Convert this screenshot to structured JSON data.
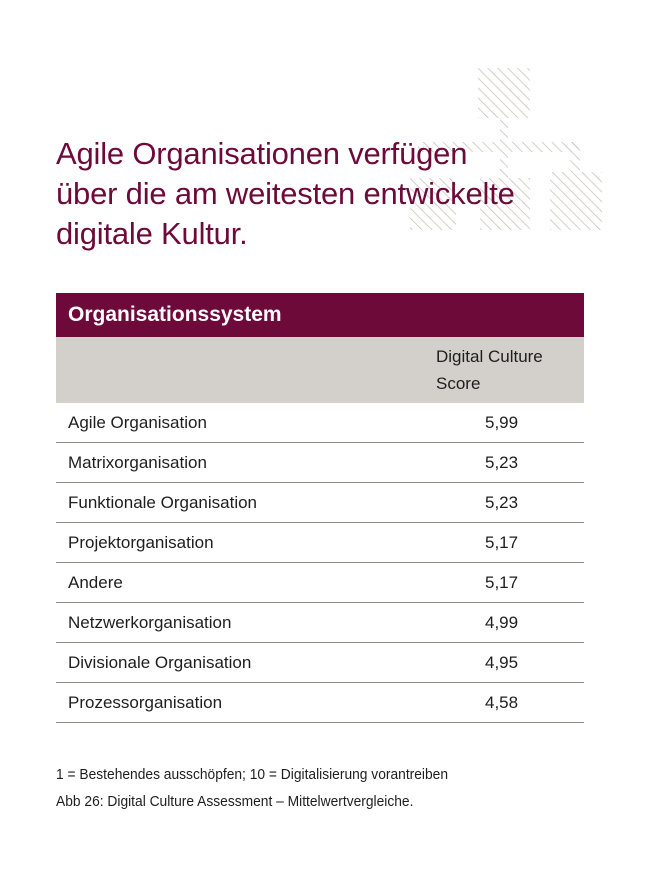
{
  "headline": {
    "lines": [
      "Agile Organisationen verfügen",
      "über die am weitesten entwickelte",
      "digitale Kultur."
    ]
  },
  "table": {
    "title": "Organisationssystem",
    "score_header_line1": "Digital Culture",
    "score_header_line2": "Score",
    "rows": [
      {
        "name": "Agile Organisation",
        "score": "5,99"
      },
      {
        "name": "Matrixorganisation",
        "score": "5,23"
      },
      {
        "name": "Funktionale Organisation",
        "score": "5,23"
      },
      {
        "name": "Projektorganisation",
        "score": "5,17"
      },
      {
        "name": "Andere",
        "score": "5,17"
      },
      {
        "name": "Netzwerkorganisation",
        "score": "4,99"
      },
      {
        "name": "Divisionale Organisation",
        "score": "4,95"
      },
      {
        "name": "Prozessorganisation",
        "score": "4,58"
      }
    ]
  },
  "footnote": {
    "scale_note": "1 = Bestehendes ausschöpfen; 10 = Digitalisierung vorantreiben",
    "caption": "Abb 26: Digital Culture Assessment – Mittelwertvergleiche."
  },
  "colors": {
    "accent": "#6e0a3a",
    "header_band": "#d3cfcb",
    "hatch": "#c9c3be"
  },
  "decoration": {
    "icon": "hatched-org-chart-icon"
  }
}
